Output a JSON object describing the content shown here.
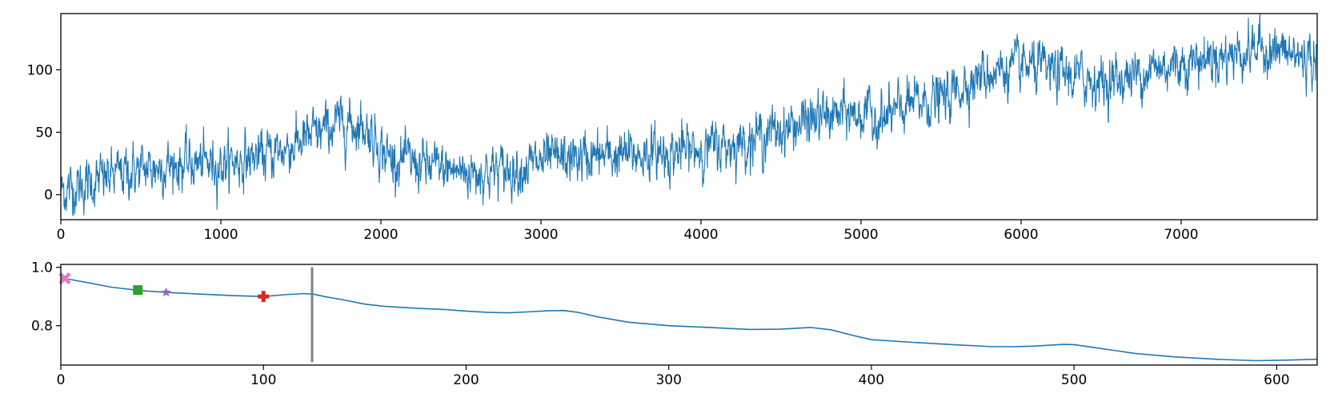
{
  "chart_data": [
    {
      "type": "line",
      "title": "",
      "xlabel": "",
      "ylabel": "",
      "xlim": [
        0,
        7850
      ],
      "ylim": [
        -20,
        145
      ],
      "grid": false,
      "xticks": [
        0,
        1000,
        2000,
        3000,
        4000,
        5000,
        6000,
        7000
      ],
      "yticks": [
        0,
        50,
        100
      ],
      "series": [
        {
          "color": "#1f77b4",
          "n_points": 7850,
          "noise_amplitude": 10,
          "trend": {
            "x": [
              0,
              150,
              400,
              700,
              1000,
              1300,
              1550,
              1750,
              1900,
              2050,
              2300,
              2550,
              2800,
              3050,
              3300,
              3600,
              3900,
              4200,
              4500,
              4750,
              5000,
              5150,
              5300,
              5550,
              5650,
              5850,
              6050,
              6300,
              6550,
              6800,
              7050,
              7300,
              7500,
              7650,
              7850
            ],
            "y": [
              3,
              8,
              18,
              24,
              25,
              32,
              45,
              58,
              55,
              30,
              22,
              18,
              20,
              27,
              30,
              32,
              35,
              40,
              52,
              62,
              65,
              60,
              72,
              78,
              90,
              100,
              102,
              95,
              90,
              100,
              107,
              112,
              118,
              113,
              108
            ]
          }
        }
      ]
    },
    {
      "type": "line",
      "title": "",
      "xlabel": "",
      "ylabel": "",
      "xlim": [
        0,
        620
      ],
      "ylim": [
        0.665,
        1.01
      ],
      "grid": false,
      "xticks": [
        0,
        100,
        200,
        300,
        400,
        500,
        600
      ],
      "yticks": [
        0.8,
        1.0
      ],
      "ytick_labels": [
        "0.8",
        "1.0"
      ],
      "series": [
        {
          "color": "#1f77b4",
          "x": [
            0,
            5,
            15,
            25,
            40,
            55,
            70,
            85,
            100,
            110,
            120,
            125,
            130,
            140,
            150,
            160,
            175,
            190,
            200,
            210,
            220,
            230,
            240,
            248,
            255,
            265,
            280,
            300,
            320,
            340,
            355,
            370,
            380,
            390,
            400,
            420,
            440,
            460,
            470,
            480,
            495,
            500,
            510,
            530,
            550,
            570,
            590,
            605,
            620
          ],
          "y": [
            0.962,
            0.958,
            0.945,
            0.932,
            0.92,
            0.913,
            0.908,
            0.903,
            0.9,
            0.906,
            0.91,
            0.908,
            0.9,
            0.888,
            0.874,
            0.866,
            0.86,
            0.855,
            0.85,
            0.846,
            0.844,
            0.847,
            0.851,
            0.852,
            0.846,
            0.83,
            0.812,
            0.8,
            0.794,
            0.787,
            0.788,
            0.794,
            0.786,
            0.768,
            0.752,
            0.743,
            0.735,
            0.728,
            0.728,
            0.73,
            0.736,
            0.735,
            0.725,
            0.705,
            0.693,
            0.685,
            0.68,
            0.682,
            0.685
          ]
        }
      ],
      "markers": [
        {
          "x": 2,
          "y": 0.962,
          "shape": "x-cross",
          "color": "#e377c2"
        },
        {
          "x": 38,
          "y": 0.922,
          "shape": "square",
          "color": "#2ca02c"
        },
        {
          "x": 52,
          "y": 0.914,
          "shape": "star",
          "color": "#9467bd"
        },
        {
          "x": 100,
          "y": 0.9,
          "shape": "plus",
          "color": "#d62728"
        }
      ],
      "vline": {
        "x": 124,
        "y_range": [
          0.675,
          1.0
        ],
        "color": "#808080"
      }
    }
  ]
}
